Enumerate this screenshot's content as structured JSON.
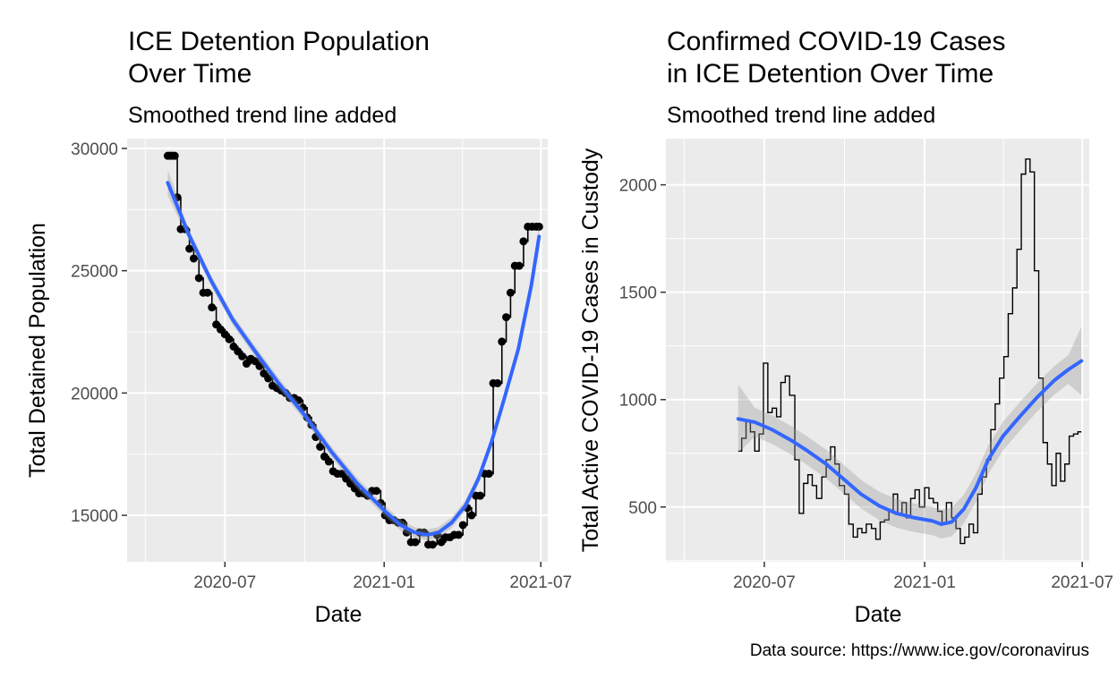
{
  "caption": "Data source: https://www.ice.gov/coronavirus",
  "chart_data": [
    {
      "type": "line",
      "title": "ICE Detention Population\nOver Time",
      "subtitle": "Smoothed trend line added",
      "xlabel": "Date",
      "ylabel": "Total Detained Population",
      "x_ticks": [
        "2020-07",
        "2021-01",
        "2021-07"
      ],
      "y_ticks": [
        15000,
        20000,
        25000,
        30000
      ],
      "xlim": [
        "2020-03-10",
        "2021-07-09"
      ],
      "ylim": [
        13100,
        30400
      ],
      "grid": true,
      "background": "#ebebeb",
      "series": [
        {
          "type": "step-with-points",
          "color": "#000000",
          "x": [
            "2020-04-26",
            "2020-04-28",
            "2020-04-30",
            "2020-05-02",
            "2020-05-04",
            "2020-05-07",
            "2020-05-11",
            "2020-05-16",
            "2020-05-21",
            "2020-05-26",
            "2020-06-01",
            "2020-06-06",
            "2020-06-11",
            "2020-06-16",
            "2020-06-21",
            "2020-06-26",
            "2020-07-01",
            "2020-07-06",
            "2020-07-11",
            "2020-07-16",
            "2020-07-21",
            "2020-07-26",
            "2020-07-31",
            "2020-08-05",
            "2020-08-10",
            "2020-08-15",
            "2020-08-20",
            "2020-08-25",
            "2020-08-30",
            "2020-09-04",
            "2020-09-09",
            "2020-09-14",
            "2020-09-19",
            "2020-09-24",
            "2020-09-29",
            "2020-10-04",
            "2020-10-09",
            "2020-10-14",
            "2020-10-19",
            "2020-10-24",
            "2020-10-29",
            "2020-11-03",
            "2020-11-08",
            "2020-11-13",
            "2020-11-18",
            "2020-11-23",
            "2020-11-28",
            "2020-12-03",
            "2020-12-08",
            "2020-12-13",
            "2020-12-18",
            "2020-12-23",
            "2020-12-28",
            "2021-01-02",
            "2021-01-07",
            "2021-01-12",
            "2021-01-17",
            "2021-01-22",
            "2021-01-27",
            "2021-02-01",
            "2021-02-06",
            "2021-02-11",
            "2021-02-16",
            "2021-02-21",
            "2021-02-26",
            "2021-03-03",
            "2021-03-08",
            "2021-03-13",
            "2021-03-18",
            "2021-03-23",
            "2021-03-28",
            "2021-04-02",
            "2021-04-07",
            "2021-04-12",
            "2021-04-17",
            "2021-04-22",
            "2021-04-27",
            "2021-05-02",
            "2021-05-07",
            "2021-05-12",
            "2021-05-17",
            "2021-05-22",
            "2021-05-27",
            "2021-06-01",
            "2021-06-06",
            "2021-06-11",
            "2021-06-16",
            "2021-06-21",
            "2021-06-26",
            "2021-06-29"
          ],
          "y": [
            29700,
            29700,
            29700,
            29700,
            29700,
            28000,
            26700,
            26700,
            25900,
            25500,
            24700,
            24100,
            24100,
            23500,
            22800,
            22600,
            22400,
            22200,
            21900,
            21700,
            21500,
            21200,
            21400,
            21300,
            21100,
            20800,
            20600,
            20300,
            20200,
            20100,
            20000,
            19800,
            19800,
            19700,
            19400,
            19000,
            18700,
            18200,
            17800,
            17400,
            17200,
            16800,
            16700,
            16700,
            16500,
            16300,
            16100,
            15900,
            15900,
            15800,
            16000,
            16000,
            15500,
            15000,
            14800,
            14800,
            14700,
            14700,
            14300,
            13900,
            13900,
            14300,
            14300,
            13800,
            13800,
            14200,
            13900,
            14100,
            14100,
            14200,
            14200,
            14600,
            15300,
            15000,
            15800,
            15800,
            16700,
            16700,
            20400,
            20400,
            22100,
            23100,
            24100,
            25200,
            25200,
            26200,
            26800,
            26800,
            26800,
            26800
          ]
        },
        {
          "type": "smooth",
          "color": "#3366ff",
          "x": [
            "2020-04-26",
            "2020-05-20",
            "2020-06-15",
            "2020-07-10",
            "2020-08-05",
            "2020-09-01",
            "2020-10-01",
            "2020-11-01",
            "2020-12-01",
            "2021-01-01",
            "2021-01-20",
            "2021-02-05",
            "2021-02-20",
            "2021-03-05",
            "2021-03-20",
            "2021-04-05",
            "2021-04-20",
            "2021-05-05",
            "2021-05-20",
            "2021-06-05",
            "2021-06-20",
            "2021-06-29"
          ],
          "y": [
            28600,
            26500,
            24600,
            23000,
            21700,
            20400,
            19100,
            17600,
            16300,
            15200,
            14600,
            14300,
            14200,
            14300,
            14700,
            15400,
            16500,
            18000,
            19800,
            21800,
            24400,
            26400
          ]
        }
      ]
    },
    {
      "type": "line",
      "title": "Confirmed COVID-19 Cases\nin ICE Detention Over Time",
      "subtitle": "Smoothed trend line added",
      "xlabel": "Date",
      "ylabel": "Total Active COVID-19 Cases in Custody",
      "x_ticks": [
        "2020-07",
        "2021-01",
        "2021-07"
      ],
      "y_ticks": [
        500,
        1000,
        1500,
        2000
      ],
      "xlim": [
        "2020-03-10",
        "2021-07-09"
      ],
      "ylim": [
        245,
        2215
      ],
      "grid": true,
      "background": "#ebebeb",
      "series": [
        {
          "type": "step",
          "color": "#000000",
          "x": [
            "2020-06-01",
            "2020-06-05",
            "2020-06-10",
            "2020-06-15",
            "2020-06-20",
            "2020-06-25",
            "2020-06-30",
            "2020-07-05",
            "2020-07-10",
            "2020-07-15",
            "2020-07-20",
            "2020-07-25",
            "2020-07-30",
            "2020-08-05",
            "2020-08-10",
            "2020-08-15",
            "2020-08-20",
            "2020-08-25",
            "2020-08-30",
            "2020-09-05",
            "2020-09-10",
            "2020-09-15",
            "2020-09-20",
            "2020-09-25",
            "2020-10-01",
            "2020-10-06",
            "2020-10-11",
            "2020-10-16",
            "2020-10-21",
            "2020-10-26",
            "2020-11-01",
            "2020-11-06",
            "2020-11-11",
            "2020-11-16",
            "2020-11-21",
            "2020-11-26",
            "2020-12-01",
            "2020-12-06",
            "2020-12-11",
            "2020-12-16",
            "2020-12-21",
            "2020-12-26",
            "2021-01-01",
            "2021-01-06",
            "2021-01-11",
            "2021-01-16",
            "2021-01-21",
            "2021-01-26",
            "2021-02-01",
            "2021-02-06",
            "2021-02-11",
            "2021-02-16",
            "2021-02-21",
            "2021-02-26",
            "2021-03-03",
            "2021-03-08",
            "2021-03-13",
            "2021-03-18",
            "2021-03-23",
            "2021-03-28",
            "2021-04-02",
            "2021-04-07",
            "2021-04-12",
            "2021-04-17",
            "2021-04-22",
            "2021-04-27",
            "2021-05-02",
            "2021-05-07",
            "2021-05-12",
            "2021-05-17",
            "2021-05-22",
            "2021-05-27",
            "2021-06-01",
            "2021-06-06",
            "2021-06-11",
            "2021-06-16",
            "2021-06-21",
            "2021-06-26",
            "2021-06-30"
          ],
          "y": [
            760,
            820,
            900,
            850,
            760,
            840,
            1170,
            940,
            960,
            920,
            1080,
            1110,
            1020,
            720,
            470,
            610,
            650,
            600,
            540,
            640,
            720,
            780,
            700,
            600,
            560,
            420,
            360,
            400,
            380,
            420,
            400,
            350,
            430,
            440,
            480,
            560,
            470,
            520,
            450,
            540,
            580,
            500,
            590,
            540,
            520,
            480,
            420,
            520,
            450,
            400,
            330,
            360,
            420,
            380,
            560,
            640,
            720,
            860,
            980,
            1100,
            1200,
            1400,
            1520,
            1700,
            2050,
            2120,
            2060,
            1600,
            1100,
            800,
            700,
            600,
            750,
            620,
            700,
            830,
            840,
            850,
            850
          ]
        },
        {
          "type": "smooth",
          "color": "#3366ff",
          "x": [
            "2020-06-01",
            "2020-06-20",
            "2020-07-10",
            "2020-08-01",
            "2020-08-20",
            "2020-09-10",
            "2020-09-30",
            "2020-10-20",
            "2020-11-10",
            "2020-11-30",
            "2020-12-20",
            "2021-01-10",
            "2021-01-20",
            "2021-02-01",
            "2021-02-15",
            "2021-03-01",
            "2021-03-15",
            "2021-04-01",
            "2021-04-20",
            "2021-05-10",
            "2021-05-30",
            "2021-06-15",
            "2021-06-30"
          ],
          "y": [
            910,
            895,
            860,
            810,
            760,
            700,
            630,
            560,
            505,
            470,
            450,
            435,
            420,
            430,
            490,
            590,
            720,
            830,
            920,
            1010,
            1090,
            1140,
            1180
          ]
        }
      ]
    }
  ]
}
